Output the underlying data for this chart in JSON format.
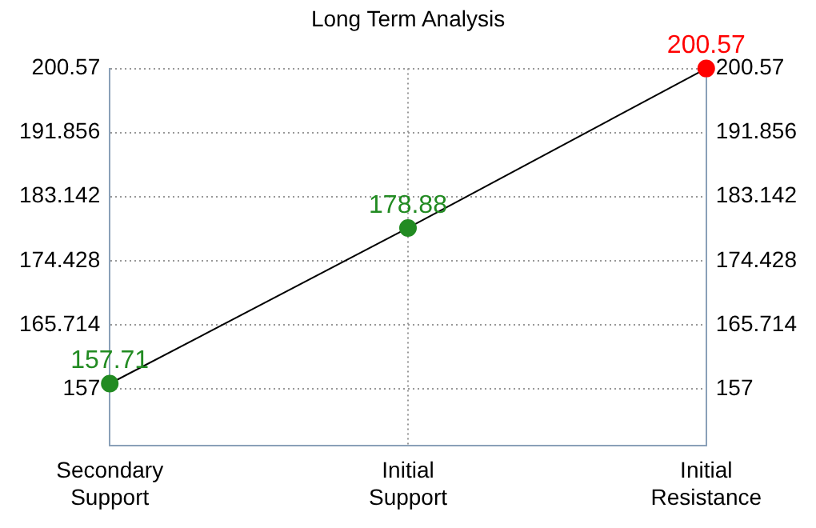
{
  "chart_data": {
    "type": "line",
    "title": "Long Term Analysis",
    "categories": [
      "Secondary Support",
      "Initial Support",
      "Initial Resistance"
    ],
    "series": [
      {
        "color": "#000000",
        "colors": [
          "#228b22",
          "#228b22",
          "#ff0000"
        ],
        "values": [
          157.71,
          178.88,
          200.57
        ]
      }
    ],
    "ylim": [
      149.3,
      200.57
    ],
    "yticks": [
      157,
      165.714,
      174.428,
      183.142,
      191.856,
      200.57
    ],
    "y2lim": [
      149.3,
      200.57
    ],
    "y2ticks": [
      157,
      165.714,
      174.428,
      183.142,
      191.856,
      200.57
    ],
    "grid": true,
    "legend": false,
    "marker": "circle",
    "line_style": "solid",
    "data_labels": true
  }
}
